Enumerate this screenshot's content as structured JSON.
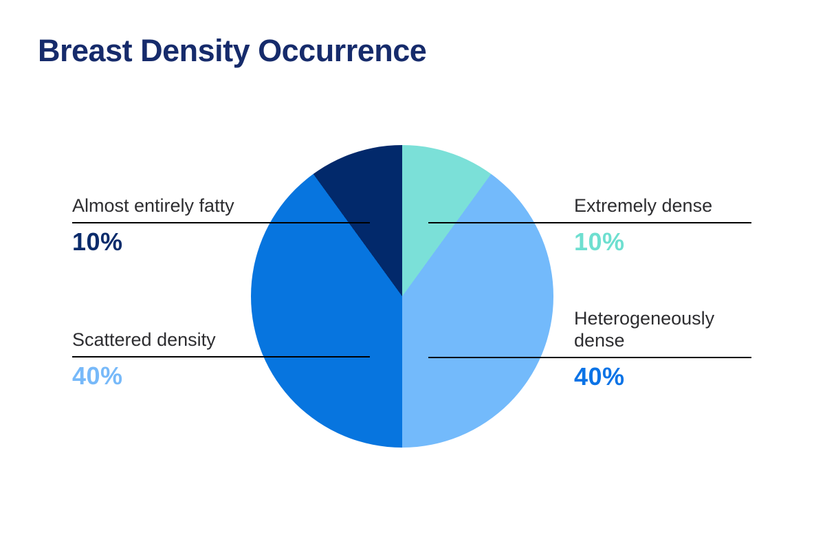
{
  "title": "Breast Density Occurrence",
  "colors": {
    "background": "#ffffff",
    "title": "#162b6b",
    "label_text": "#2d2d30",
    "leader_line": "#000000"
  },
  "chart_data": {
    "type": "pie",
    "title": "Breast Density Occurrence",
    "start_angle_deg": 0,
    "direction": "clockwise",
    "legend_position": "callouts",
    "segments": [
      {
        "label": "Extremely dense",
        "value": 10,
        "unit": "%",
        "color": "#7be0d8"
      },
      {
        "label": "Heterogeneously dense",
        "value": 40,
        "unit": "%",
        "color": "#73bafb"
      },
      {
        "label": "Scattered density",
        "value": 40,
        "unit": "%",
        "color": "#0775df"
      },
      {
        "label": "Almost entirely fatty",
        "value": 10,
        "unit": "%",
        "color": "#02296b"
      }
    ]
  },
  "callouts": [
    {
      "name": "Almost entirely fatty",
      "pct": "10%",
      "pct_color": "#0a2b6b"
    },
    {
      "name": "Scattered density",
      "pct": "40%",
      "pct_color": "#77b9f9"
    },
    {
      "name": "Extremely dense",
      "pct": "10%",
      "pct_color": "#6edfd0"
    },
    {
      "name": "Heterogeneously dense",
      "pct": "40%",
      "pct_color": "#0b73e6"
    }
  ]
}
